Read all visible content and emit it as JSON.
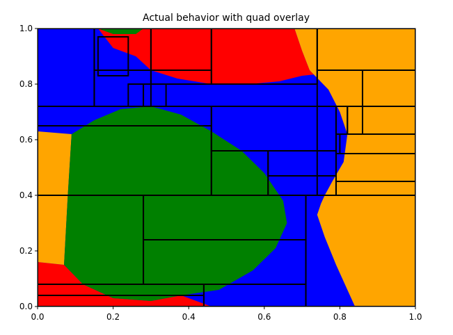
{
  "chart_data": {
    "type": "region-map",
    "title": "Actual behavior with quad overlay",
    "xlabel": "",
    "ylabel": "",
    "xlim": [
      0,
      1
    ],
    "ylim": [
      0,
      1
    ],
    "x_ticks": [
      "0.0",
      "0.2",
      "0.4",
      "0.6",
      "0.8",
      "1.0"
    ],
    "y_ticks": [
      "0.0",
      "0.2",
      "0.4",
      "0.6",
      "0.8",
      "1.0"
    ],
    "grid": false,
    "colors": {
      "red": "#ff0000",
      "blue": "#0000ff",
      "green": "#008000",
      "orange": "#ffa500",
      "quad_edge": "#000000"
    },
    "regions": [
      {
        "color": "red",
        "polygon": [
          [
            0.0,
            0.0
          ],
          [
            0.0,
            0.16
          ],
          [
            0.07,
            0.15
          ],
          [
            0.12,
            0.08
          ],
          [
            0.2,
            0.03
          ],
          [
            0.3,
            0.02
          ],
          [
            0.38,
            0.04
          ],
          [
            0.46,
            0.0
          ]
        ]
      },
      {
        "color": "orange",
        "polygon": [
          [
            0.0,
            0.16
          ],
          [
            0.0,
            0.63
          ],
          [
            0.09,
            0.62
          ],
          [
            0.08,
            0.4
          ],
          [
            0.07,
            0.15
          ]
        ]
      },
      {
        "color": "green",
        "polygon": [
          [
            0.07,
            0.15
          ],
          [
            0.08,
            0.4
          ],
          [
            0.09,
            0.62
          ],
          [
            0.15,
            0.67
          ],
          [
            0.22,
            0.71
          ],
          [
            0.3,
            0.72
          ],
          [
            0.38,
            0.69
          ],
          [
            0.46,
            0.63
          ],
          [
            0.54,
            0.56
          ],
          [
            0.6,
            0.48
          ],
          [
            0.65,
            0.38
          ],
          [
            0.66,
            0.3
          ],
          [
            0.63,
            0.21
          ],
          [
            0.57,
            0.13
          ],
          [
            0.48,
            0.06
          ],
          [
            0.38,
            0.04
          ],
          [
            0.3,
            0.02
          ],
          [
            0.2,
            0.03
          ],
          [
            0.12,
            0.08
          ]
        ]
      },
      {
        "color": "red",
        "polygon": [
          [
            0.16,
            1.0
          ],
          [
            0.2,
            0.93
          ],
          [
            0.26,
            0.9
          ],
          [
            0.3,
            0.85
          ],
          [
            0.37,
            0.82
          ],
          [
            0.46,
            0.8
          ],
          [
            0.56,
            0.8
          ],
          [
            0.64,
            0.81
          ],
          [
            0.7,
            0.83
          ],
          [
            0.77,
            0.84
          ],
          [
            0.81,
            0.82
          ],
          [
            0.84,
            0.74
          ],
          [
            0.84,
            0.68
          ],
          [
            0.82,
            0.62
          ],
          [
            0.8,
            0.7
          ],
          [
            0.77,
            0.78
          ],
          [
            0.72,
            0.85
          ],
          [
            0.7,
            0.92
          ],
          [
            0.68,
            1.0
          ]
        ]
      },
      {
        "color": "orange",
        "polygon": [
          [
            0.68,
            1.0
          ],
          [
            0.7,
            0.92
          ],
          [
            0.72,
            0.85
          ],
          [
            0.77,
            0.78
          ],
          [
            0.8,
            0.7
          ],
          [
            0.82,
            0.62
          ],
          [
            0.81,
            0.52
          ],
          [
            0.78,
            0.45
          ],
          [
            0.76,
            0.4
          ],
          [
            0.75,
            0.37
          ],
          [
            0.74,
            0.33
          ],
          [
            0.76,
            0.25
          ],
          [
            0.79,
            0.15
          ],
          [
            0.81,
            0.09
          ],
          [
            0.84,
            0.0
          ],
          [
            1.0,
            0.0
          ],
          [
            1.0,
            1.0
          ]
        ]
      },
      {
        "color": "green",
        "polygon": [
          [
            0.16,
            1.0
          ],
          [
            0.2,
            0.98
          ],
          [
            0.26,
            0.98
          ],
          [
            0.28,
            1.0
          ]
        ]
      }
    ],
    "quads": [
      [
        0.0,
        0.0,
        0.44,
        0.04
      ],
      [
        0.0,
        0.04,
        0.44,
        0.08
      ],
      [
        0.44,
        0.0,
        0.71,
        0.08
      ],
      [
        0.71,
        0.0,
        1.0,
        0.4
      ],
      [
        0.28,
        0.08,
        0.71,
        0.24
      ],
      [
        0.28,
        0.24,
        0.71,
        0.4
      ],
      [
        0.0,
        0.08,
        0.28,
        0.4
      ],
      [
        0.0,
        0.4,
        0.46,
        0.65
      ],
      [
        0.46,
        0.4,
        0.61,
        0.56
      ],
      [
        0.61,
        0.4,
        0.79,
        0.47
      ],
      [
        0.61,
        0.47,
        0.79,
        0.56
      ],
      [
        0.46,
        0.56,
        0.79,
        0.72
      ],
      [
        0.79,
        0.4,
        1.0,
        0.72
      ],
      [
        0.0,
        0.65,
        0.46,
        0.72
      ],
      [
        0.0,
        0.72,
        0.15,
        1.0
      ],
      [
        0.15,
        0.72,
        0.3,
        0.85
      ],
      [
        0.15,
        0.85,
        0.3,
        1.0
      ],
      [
        0.3,
        0.8,
        0.46,
        0.85
      ],
      [
        0.3,
        0.85,
        0.46,
        1.0
      ],
      [
        0.46,
        0.8,
        0.74,
        1.0
      ],
      [
        0.74,
        0.85,
        1.0,
        1.0
      ],
      [
        0.74,
        0.72,
        0.86,
        0.85
      ],
      [
        0.86,
        0.72,
        1.0,
        0.85
      ],
      [
        0.74,
        0.4,
        0.79,
        0.72
      ],
      [
        0.79,
        0.45,
        1.0,
        0.55
      ],
      [
        0.8,
        0.55,
        1.0,
        0.62
      ],
      [
        0.16,
        0.83,
        0.24,
        0.97
      ],
      [
        0.24,
        0.72,
        0.28,
        0.8
      ],
      [
        0.28,
        0.72,
        0.34,
        0.8
      ],
      [
        0.79,
        0.62,
        0.82,
        0.72
      ],
      [
        0.82,
        0.62,
        0.86,
        0.72
      ]
    ]
  }
}
